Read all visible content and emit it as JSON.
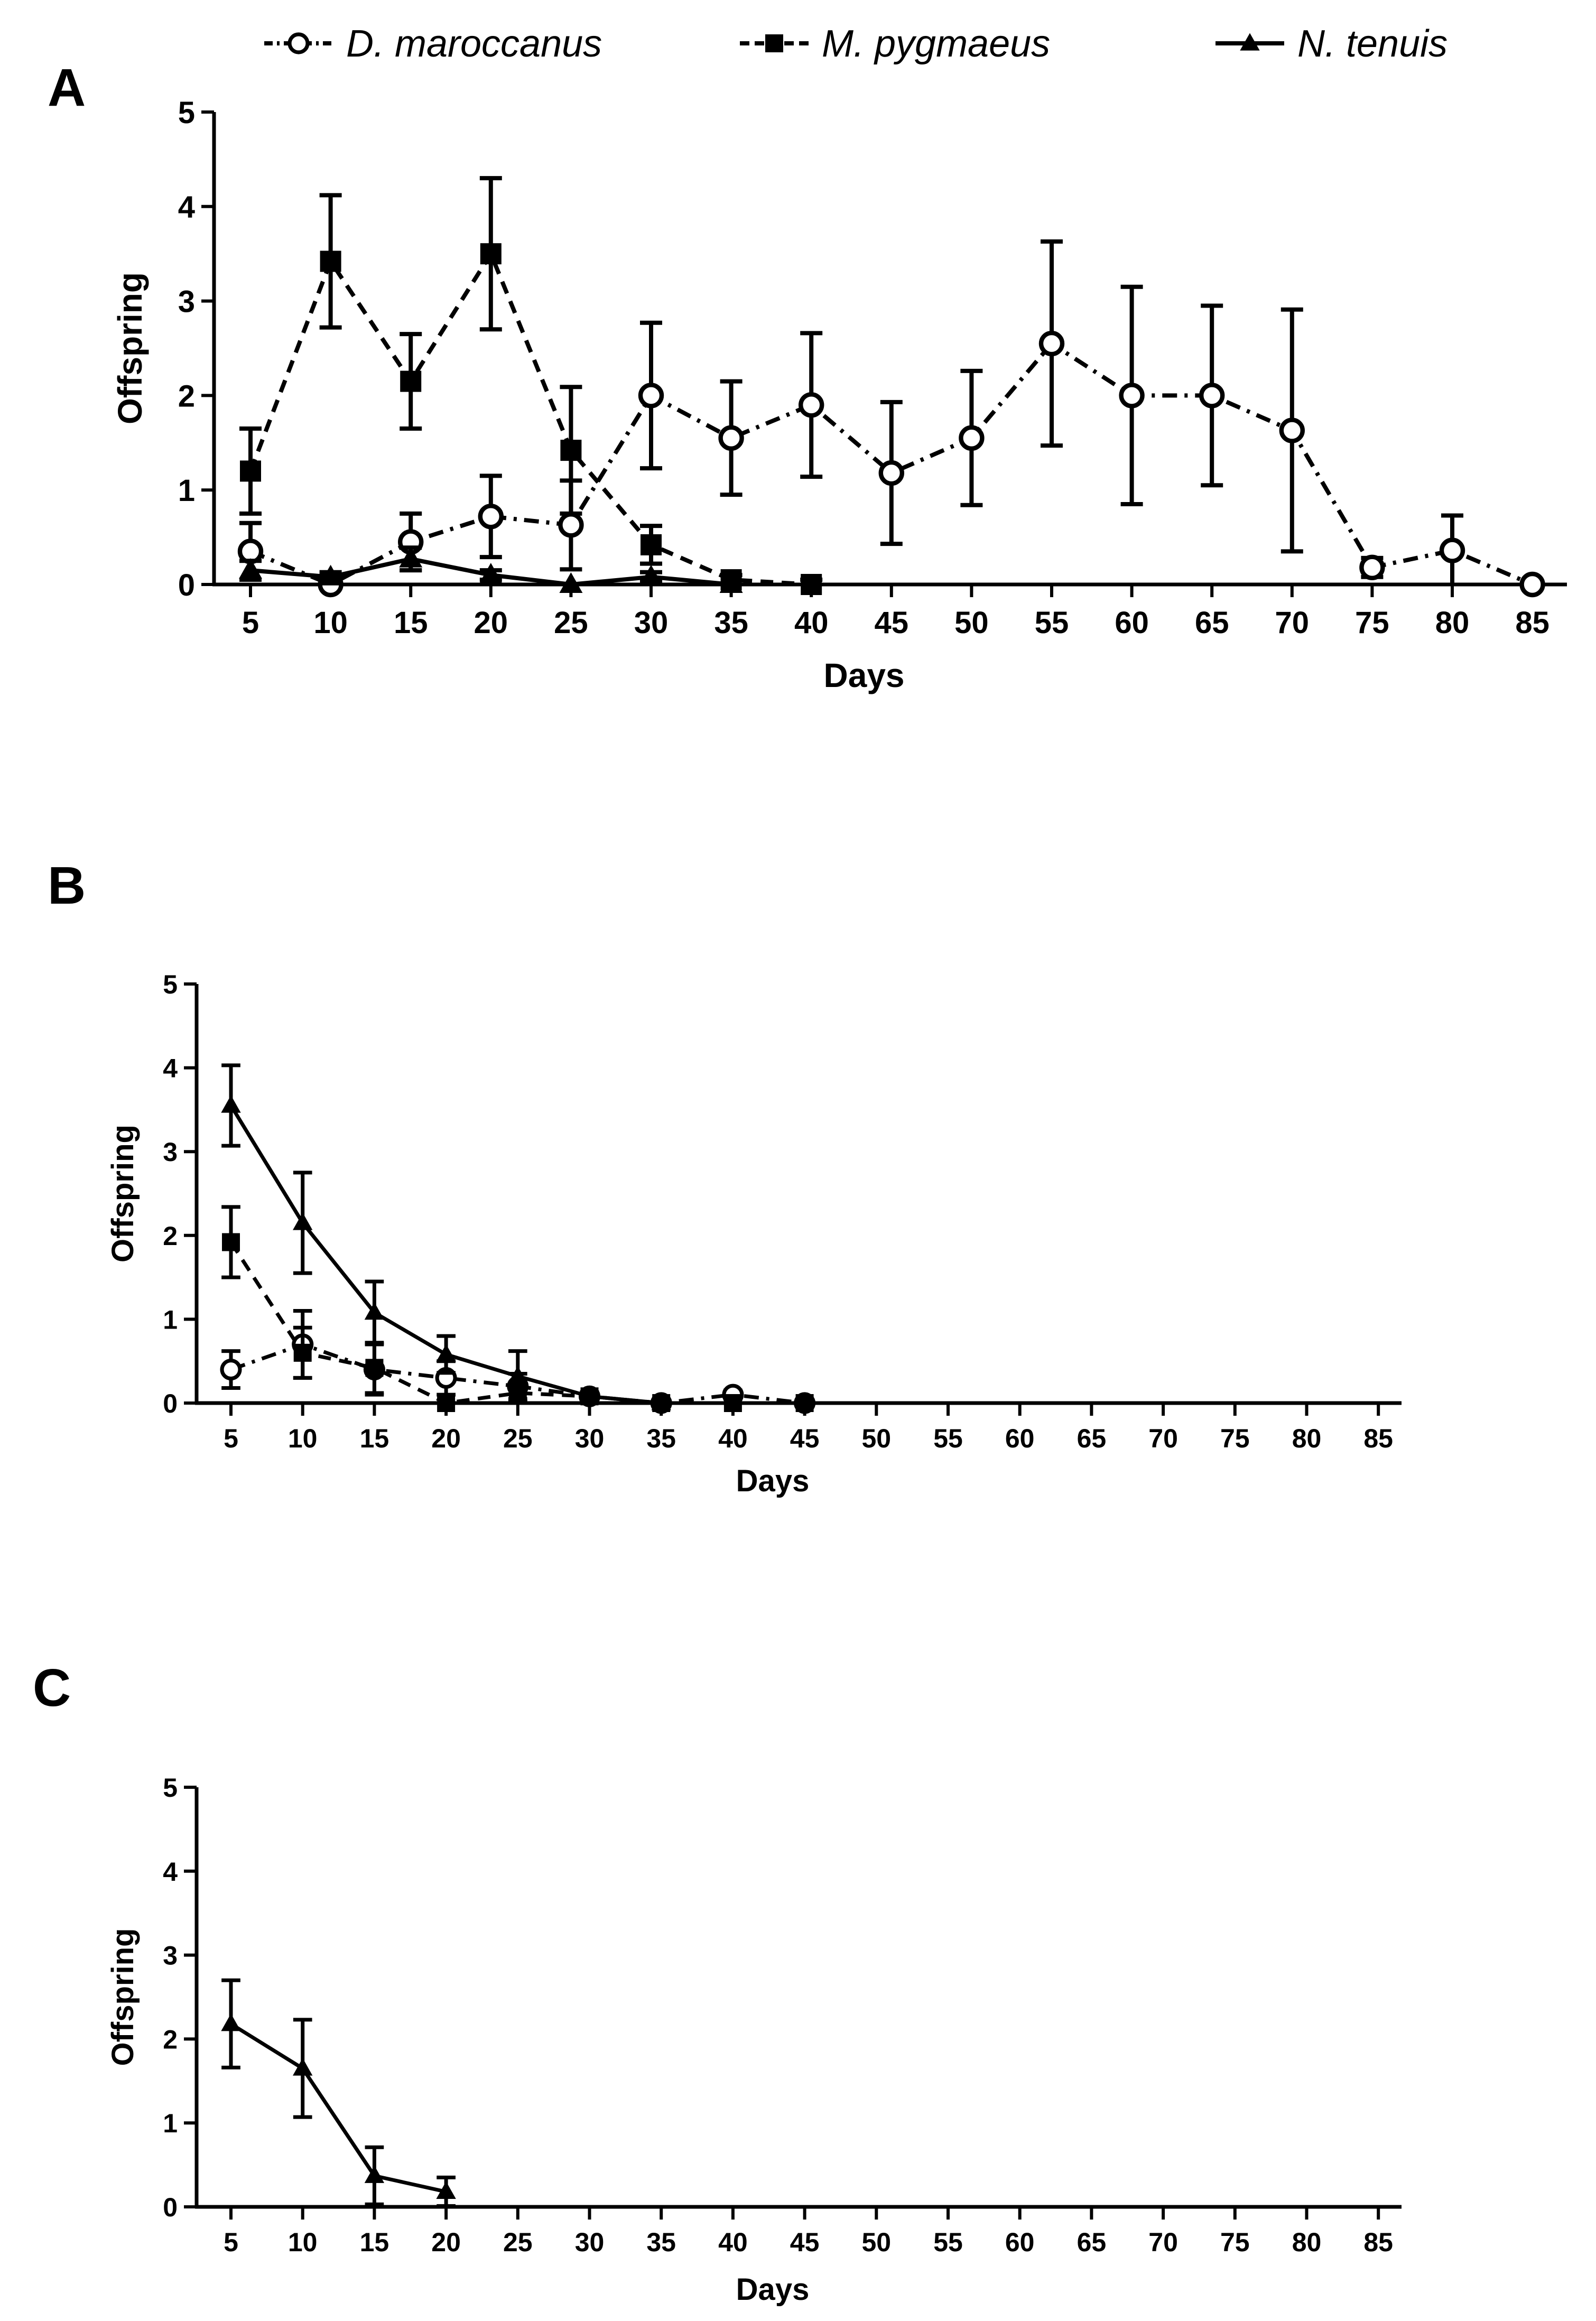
{
  "legend": [
    {
      "label": "D. maroccanus",
      "marker": "open-circle",
      "line": "dash-dot"
    },
    {
      "label": "M. pygmaeus",
      "marker": "filled-square",
      "line": "dashed"
    },
    {
      "label": "N. tenuis",
      "marker": "filled-triangle",
      "line": "solid"
    }
  ],
  "chart_data": [
    {
      "panel": "A",
      "type": "line",
      "xlabel": "Days",
      "ylabel": "Offspring",
      "ylim": [
        0,
        5
      ],
      "yticks": [
        0,
        1,
        2,
        3,
        4,
        5
      ],
      "categories": [
        5,
        10,
        15,
        20,
        25,
        30,
        35,
        40,
        45,
        50,
        55,
        60,
        65,
        70,
        75,
        80,
        85
      ],
      "series": [
        {
          "name": "D. maroccanus",
          "x": [
            5,
            10,
            15,
            20,
            25,
            30,
            35,
            40,
            45,
            50,
            55,
            60,
            65,
            70,
            75,
            80,
            85
          ],
          "values": [
            0.35,
            0.0,
            0.45,
            0.72,
            0.63,
            2.0,
            1.55,
            1.9,
            1.18,
            1.55,
            2.55,
            2.0,
            2.0,
            1.63,
            0.18,
            0.36,
            0.0
          ],
          "errors": [
            0.3,
            0.0,
            0.3,
            0.43,
            0.47,
            0.77,
            0.6,
            0.76,
            0.75,
            0.71,
            1.08,
            1.15,
            0.95,
            1.28,
            0.1,
            0.37,
            0.0
          ]
        },
        {
          "name": "M. pygmaeus",
          "x": [
            5,
            10,
            15,
            20,
            25,
            30,
            35,
            40
          ],
          "values": [
            1.2,
            3.42,
            2.15,
            3.5,
            1.42,
            0.42,
            0.05,
            0.0
          ],
          "errors": [
            0.45,
            0.7,
            0.5,
            0.8,
            0.67,
            0.2,
            0.05,
            0.05
          ]
        },
        {
          "name": "N. tenuis",
          "x": [
            5,
            10,
            15,
            20,
            25,
            30,
            35
          ],
          "values": [
            0.15,
            0.08,
            0.27,
            0.1,
            0.0,
            0.08,
            0.0
          ],
          "errors": [
            0.1,
            0.05,
            0.12,
            0.05,
            0.0,
            0.05,
            0.0
          ]
        }
      ]
    },
    {
      "panel": "B",
      "type": "line",
      "xlabel": "Days",
      "ylabel": "Offspring",
      "ylim": [
        0,
        5
      ],
      "yticks": [
        0,
        1,
        2,
        3,
        4,
        5
      ],
      "categories": [
        5,
        10,
        15,
        20,
        25,
        30,
        35,
        40,
        45,
        50,
        55,
        60,
        65,
        70,
        75,
        80,
        85
      ],
      "series": [
        {
          "name": "D. maroccanus",
          "x": [
            5,
            10,
            15,
            20,
            25,
            30,
            35,
            40,
            45
          ],
          "values": [
            0.4,
            0.7,
            0.4,
            0.3,
            0.2,
            0.08,
            0.0,
            0.1,
            0.0
          ],
          "errors": [
            0.22,
            0.4,
            0.3,
            0.2,
            0.15,
            0.05,
            0.0,
            0.05,
            0.0
          ]
        },
        {
          "name": "M. pygmaeus",
          "x": [
            5,
            10,
            15,
            20,
            25,
            30,
            35,
            40,
            45
          ],
          "values": [
            1.92,
            0.6,
            0.42,
            0.0,
            0.12,
            0.08,
            0.0,
            0.0,
            0.0
          ],
          "errors": [
            0.42,
            0.3,
            0.3,
            0.0,
            0.1,
            0.05,
            0.0,
            0.0,
            0.0
          ]
        },
        {
          "name": "N. tenuis",
          "x": [
            5,
            10,
            15,
            20,
            25,
            30,
            35
          ],
          "values": [
            3.55,
            2.15,
            1.08,
            0.58,
            0.32,
            0.08,
            0.0
          ],
          "errors": [
            0.48,
            0.6,
            0.37,
            0.22,
            0.3,
            0.05,
            0.0
          ]
        }
      ]
    },
    {
      "panel": "C",
      "type": "line",
      "xlabel": "Days",
      "ylabel": "Offspring",
      "ylim": [
        0,
        5
      ],
      "yticks": [
        0,
        1,
        2,
        3,
        4,
        5
      ],
      "categories": [
        5,
        10,
        15,
        20,
        25,
        30,
        35,
        40,
        45,
        50,
        55,
        60,
        65,
        70,
        75,
        80,
        85
      ],
      "series": [
        {
          "name": "N. tenuis",
          "x": [
            5,
            10,
            15,
            20
          ],
          "values": [
            2.18,
            1.65,
            0.37,
            0.18
          ],
          "errors": [
            0.52,
            0.58,
            0.34,
            0.17
          ]
        }
      ]
    }
  ]
}
